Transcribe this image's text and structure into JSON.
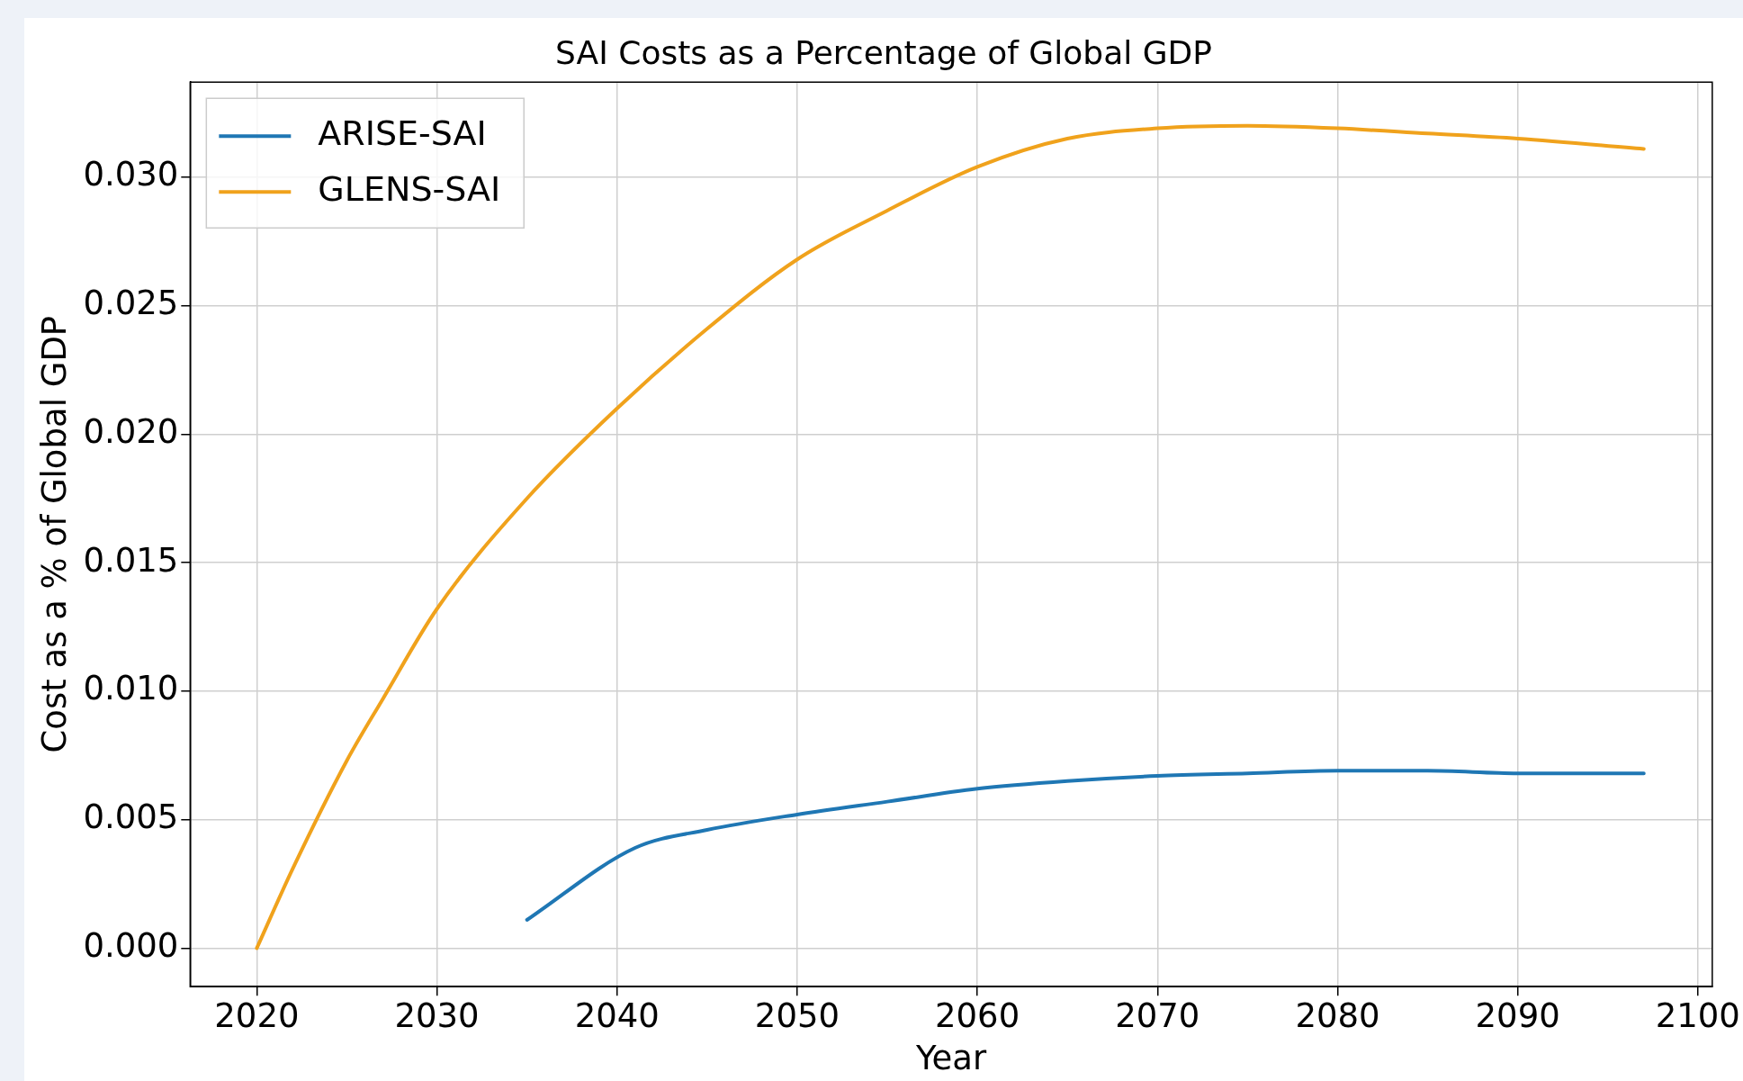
{
  "chart_data": {
    "type": "line",
    "title": "SAI Costs as a Percentage of Global GDP",
    "xlabel": "Year",
    "ylabel": "Cost as a % of Global GDP",
    "xlim": [
      2016.3,
      2100.8
    ],
    "xticks": [
      2020,
      2030,
      2040,
      2050,
      2060,
      2070,
      2080,
      2090,
      2100
    ],
    "ylim": [
      -0.0015,
      0.0337
    ],
    "yticks": [
      {
        "value": 0,
        "label": "0.000"
      },
      {
        "value": 0.005,
        "label": "0.005"
      },
      {
        "value": 0.01,
        "label": "0.010"
      },
      {
        "value": 0.015,
        "label": "0.015"
      },
      {
        "value": 0.02,
        "label": "0.020"
      },
      {
        "value": 0.025,
        "label": "0.025"
      },
      {
        "value": 0.03,
        "label": "0.030"
      }
    ],
    "grid": true,
    "legend": "top left",
    "marker": "none",
    "line_style": "solid",
    "series": [
      {
        "name": "ARISE-SAI",
        "color": "#1f77b4",
        "x": [
          2035,
          2041,
          2045,
          2050,
          2055,
          2060,
          2065,
          2070,
          2075,
          2080,
          2085,
          2090,
          2097
        ],
        "values": [
          0.0011,
          0.0039,
          0.0046,
          0.0052,
          0.0057,
          0.0062,
          0.0065,
          0.0067,
          0.0068,
          0.0069,
          0.0069,
          0.0068,
          0.0068
        ]
      },
      {
        "name": "GLENS-SAI",
        "color": "#f0a21c",
        "x": [
          2020,
          2022,
          2025,
          2027,
          2030,
          2035,
          2040,
          2045,
          2050,
          2055,
          2060,
          2065,
          2070,
          2075,
          2080,
          2085,
          2090,
          2097
        ],
        "values": [
          0,
          0.0031,
          0.0073,
          0.0097,
          0.0132,
          0.0175,
          0.021,
          0.0241,
          0.0268,
          0.0287,
          0.0304,
          0.0315,
          0.0319,
          0.032,
          0.0319,
          0.0317,
          0.0315,
          0.0311
        ]
      }
    ]
  }
}
